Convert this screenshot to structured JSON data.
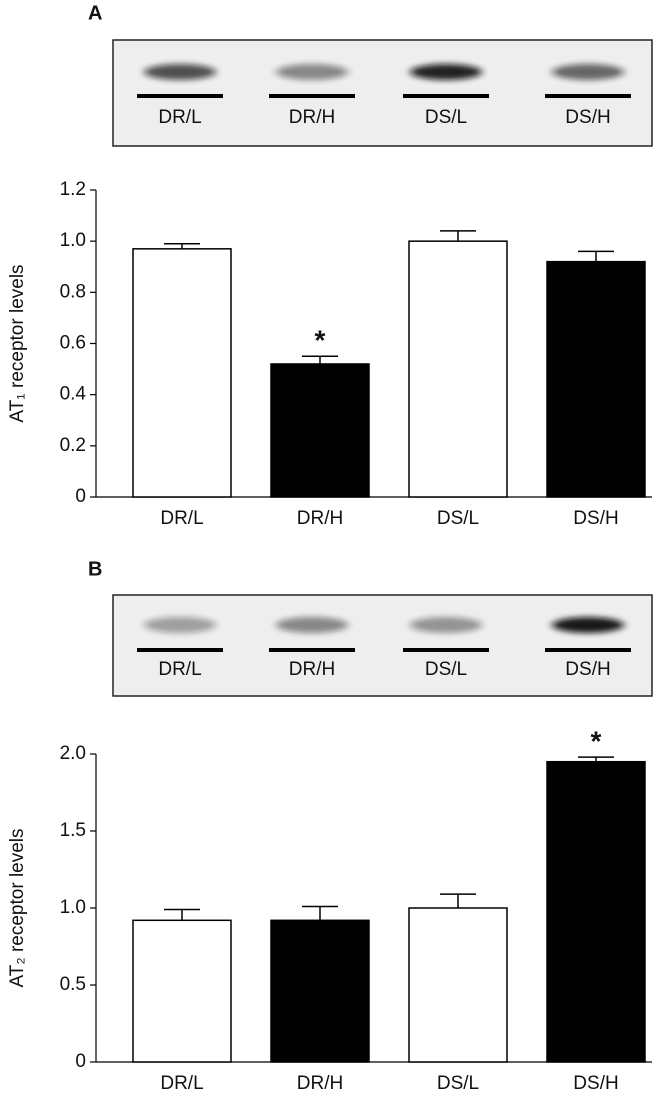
{
  "chart_data": [
    {
      "type": "bar",
      "panel_label": "A",
      "blot_labels": [
        "DR/L",
        "DR/H",
        "DS/L",
        "DS/H"
      ],
      "y_label": "AT₁ receptor levels",
      "categories": [
        "DR/L",
        "DR/H",
        "DS/L",
        "DS/H"
      ],
      "values": [
        0.97,
        0.52,
        1.0,
        0.92
      ],
      "errors": [
        0.02,
        0.03,
        0.04,
        0.04
      ],
      "colors": [
        "#ffffff",
        "#000000",
        "#ffffff",
        "#000000"
      ],
      "ylim": [
        0,
        1.2
      ],
      "yticks": [
        0,
        0.2,
        0.4,
        0.6,
        0.8,
        {
          "value": 1,
          "label": "1.0"
        },
        1.2
      ],
      "annotations": [
        {
          "text": "*",
          "index": 1
        }
      ]
    },
    {
      "type": "bar",
      "panel_label": "B",
      "blot_labels": [
        "DR/L",
        "DR/H",
        "DS/L",
        "DS/H"
      ],
      "y_label": "AT₂ receptor levels",
      "categories": [
        "DR/L",
        "DR/H",
        "DS/L",
        "DS/H"
      ],
      "values": [
        0.92,
        0.92,
        1.0,
        1.95
      ],
      "errors": [
        0.07,
        0.09,
        0.09,
        0.03
      ],
      "colors": [
        "#ffffff",
        "#000000",
        "#ffffff",
        "#000000"
      ],
      "ylim": [
        0,
        2.0
      ],
      "yticks": [
        0,
        0.5,
        {
          "value": 1,
          "label": "1.0"
        },
        1.5,
        {
          "value": 2,
          "label": "2.0"
        }
      ],
      "annotations": [
        {
          "text": "*",
          "index": 3
        }
      ]
    }
  ]
}
